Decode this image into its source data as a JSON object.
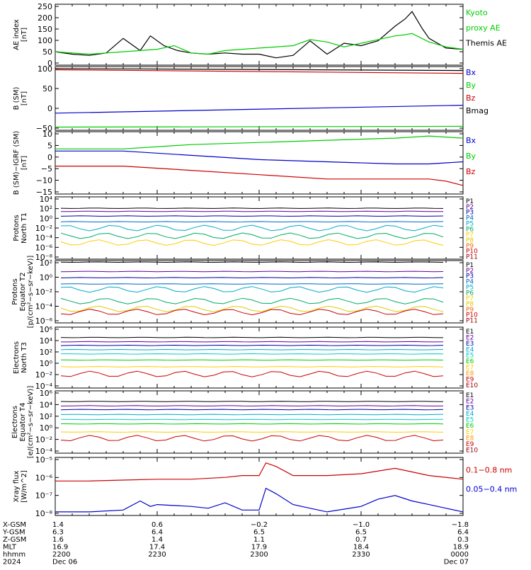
{
  "colors": {
    "black": "#000000",
    "green": "#00cc00",
    "blue": "#0000cc",
    "red": "#cc0000",
    "purple": "#660099",
    "darkblue": "#0000aa",
    "medblue": "#0066cc",
    "lightblue": "#00aacc",
    "cyan": "#00dddd",
    "lime": "#00cc00",
    "yellow": "#dddd00",
    "orange": "#ff9900",
    "darkred": "#990000"
  },
  "panels": [
    {
      "id": "ae",
      "ylabel": [
        "AE index",
        "[nT]"
      ],
      "ticks": [
        "250",
        "200",
        "150",
        "100",
        "50",
        "0"
      ],
      "legend": [
        {
          "text": "Kyoto",
          "color": "#00cc00"
        },
        {
          "text": "proxy AE",
          "color": "#00cc00"
        },
        {
          "text": "Themis AE",
          "color": "#000000"
        }
      ]
    },
    {
      "id": "bsm",
      "ylabel": [
        "B (SM)",
        "[nT]"
      ],
      "ticks": [
        "100",
        "50",
        "0",
        "−50"
      ],
      "legend": [
        {
          "text": "Bx",
          "color": "#0000cc"
        },
        {
          "text": "By",
          "color": "#00cc00"
        },
        {
          "text": "Bz",
          "color": "#cc0000"
        },
        {
          "text": "Bmag",
          "color": "#000000"
        }
      ]
    },
    {
      "id": "bigrf",
      "ylabel": [
        "B (SM)−IGRF (SM)",
        "[nT]"
      ],
      "ticks": [
        "10",
        "5",
        "0",
        "−5",
        "−10",
        "−15"
      ],
      "legend": [
        {
          "text": "Bx",
          "color": "#0000cc"
        },
        {
          "text": "By",
          "color": "#00cc00"
        },
        {
          "text": "Bz",
          "color": "#cc0000"
        }
      ]
    },
    {
      "id": "pn",
      "ylabel": [
        "Protons",
        "North T1"
      ],
      "ticks": [
        "10⁴",
        "10²",
        "10⁰",
        "10⁻²",
        "10⁻⁴",
        "10⁻⁶",
        "10⁻⁸"
      ],
      "legend": [
        {
          "text": "P1",
          "color": "#000000"
        },
        {
          "text": "P2",
          "color": "#660099"
        },
        {
          "text": "P3",
          "color": "#0000aa"
        },
        {
          "text": "P4",
          "color": "#0066cc"
        },
        {
          "text": "P5",
          "color": "#00aacc"
        },
        {
          "text": "P6",
          "color": "#00aa66"
        },
        {
          "text": "P7",
          "color": "#ffcc00"
        },
        {
          "text": "P8",
          "color": "#ddcc00"
        },
        {
          "text": "P9",
          "color": "#ff6600"
        },
        {
          "text": "P10",
          "color": "#cc0000"
        },
        {
          "text": "P11",
          "color": "#990000"
        }
      ]
    },
    {
      "id": "pe",
      "ylabel": [
        "Protons",
        "Equator T2",
        "[p/(cm²−s−sr−keV)]"
      ],
      "ticks": [
        "10²",
        "10⁰",
        "10⁻²",
        "10⁻⁴",
        "10⁻⁶"
      ],
      "legend": [
        {
          "text": "P1",
          "color": "#000000"
        },
        {
          "text": "P2",
          "color": "#660099"
        },
        {
          "text": "P3",
          "color": "#0000aa"
        },
        {
          "text": "P4",
          "color": "#0066cc"
        },
        {
          "text": "P5",
          "color": "#00aacc"
        },
        {
          "text": "P6",
          "color": "#00aa66"
        },
        {
          "text": "P7",
          "color": "#ffcc00"
        },
        {
          "text": "P8",
          "color": "#ddcc00"
        },
        {
          "text": "P9",
          "color": "#ff6600"
        },
        {
          "text": "P10",
          "color": "#cc0000"
        },
        {
          "text": "P11",
          "color": "#990000"
        }
      ]
    },
    {
      "id": "en",
      "ylabel": [
        "Electrons",
        "North T3"
      ],
      "ticks": [
        "10⁶",
        "10⁴",
        "10²",
        "10⁰",
        "10⁻²",
        "10⁻⁴"
      ],
      "legend": [
        {
          "text": "E1",
          "color": "#000000"
        },
        {
          "text": "E2",
          "color": "#660099"
        },
        {
          "text": "E3",
          "color": "#0000aa"
        },
        {
          "text": "E4",
          "color": "#00aacc"
        },
        {
          "text": "E5",
          "color": "#00cccc"
        },
        {
          "text": "E6",
          "color": "#00cc00"
        },
        {
          "text": "E7",
          "color": "#ffcc00"
        },
        {
          "text": "E8",
          "color": "#ff9900"
        },
        {
          "text": "E9",
          "color": "#cc0000"
        },
        {
          "text": "E10",
          "color": "#990000"
        }
      ]
    },
    {
      "id": "ee",
      "ylabel": [
        "Electrons",
        "Equator T4",
        "[e/(cm²−s−sr−keV)]"
      ],
      "ticks": [
        "10⁶",
        "10⁴",
        "10²",
        "10⁰",
        "10⁻²",
        "10⁻⁴"
      ],
      "legend": [
        {
          "text": "E1",
          "color": "#000000"
        },
        {
          "text": "E2",
          "color": "#660099"
        },
        {
          "text": "E3",
          "color": "#0000aa"
        },
        {
          "text": "E4",
          "color": "#00aacc"
        },
        {
          "text": "E5",
          "color": "#00cccc"
        },
        {
          "text": "E6",
          "color": "#00cc00"
        },
        {
          "text": "E7",
          "color": "#ffcc00"
        },
        {
          "text": "E8",
          "color": "#ff9900"
        },
        {
          "text": "E9",
          "color": "#cc0000"
        },
        {
          "text": "E10",
          "color": "#990000"
        }
      ]
    },
    {
      "id": "xray",
      "ylabel": [
        "Xray flux",
        "[W/m^2]"
      ],
      "ticks": [
        "10⁻⁵",
        "10⁻⁶",
        "10⁻⁷",
        "10⁻⁸"
      ],
      "legend": [
        {
          "text": "0.1−0.8 nm",
          "color": "#cc0000"
        },
        {
          "text": "0.05−0.4 nm",
          "color": "#0000cc"
        }
      ]
    }
  ],
  "footer": {
    "row_labels": [
      "X-GSM",
      "Y-GSM",
      "Z-GSM",
      "MLT",
      "hhmm",
      "2024"
    ],
    "columns": [
      [
        "1.4",
        "6.3",
        "1.6",
        "16.9",
        "2200",
        "Dec 06"
      ],
      [
        "0.6",
        "6.4",
        "1.4",
        "17.4",
        "2230",
        ""
      ],
      [
        "−0.2",
        "6.5",
        "1.1",
        "17.9",
        "2300",
        ""
      ],
      [
        "−1.0",
        "6.5",
        "0.7",
        "18.4",
        "2330",
        ""
      ],
      [
        "−1.8",
        "6.4",
        "0.3",
        "18.9",
        "0000",
        "Dec 07"
      ]
    ]
  },
  "chart_data": [
    {
      "type": "line",
      "title": "",
      "ylabel": "AE index [nT]",
      "ylim": [
        0,
        250
      ],
      "xlim": [
        0,
        120
      ],
      "series": [
        {
          "name": "Themis AE",
          "color": "#000000",
          "x": [
            0,
            5,
            10,
            15,
            20,
            25,
            28,
            32,
            36,
            40,
            45,
            50,
            55,
            60,
            65,
            70,
            75,
            80,
            85,
            90,
            95,
            100,
            103,
            105,
            108,
            110,
            115,
            120
          ],
          "y": [
            55,
            45,
            40,
            50,
            110,
            60,
            120,
            80,
            60,
            50,
            45,
            50,
            45,
            45,
            30,
            40,
            100,
            45,
            90,
            80,
            100,
            160,
            190,
            220,
            150,
            110,
            70,
            65
          ]
        },
        {
          "name": "Kyoto proxy AE",
          "color": "#00cc00",
          "x": [
            0,
            10,
            20,
            30,
            35,
            40,
            45,
            50,
            60,
            70,
            75,
            80,
            85,
            90,
            95,
            100,
            103,
            105,
            110,
            115,
            120
          ],
          "y": [
            55,
            45,
            55,
            65,
            80,
            50,
            45,
            60,
            70,
            80,
            105,
            95,
            75,
            90,
            105,
            120,
            125,
            130,
            95,
            75,
            65
          ]
        }
      ]
    },
    {
      "type": "line",
      "ylabel": "B (SM) [nT]",
      "ylim": [
        -55,
        105
      ],
      "xlim": [
        0,
        120
      ],
      "series": [
        {
          "name": "Bmag",
          "color": "#000000",
          "x": [
            0,
            120
          ],
          "y": [
            100,
            95
          ]
        },
        {
          "name": "Bz",
          "color": "#cc0000",
          "x": [
            0,
            120
          ],
          "y": [
            97,
            88
          ]
        },
        {
          "name": "Bx",
          "color": "#0000cc",
          "x": [
            0,
            120
          ],
          "y": [
            -12,
            8
          ]
        },
        {
          "name": "By",
          "color": "#00cc00",
          "x": [
            0,
            120
          ],
          "y": [
            -47,
            -45
          ]
        }
      ]
    },
    {
      "type": "line",
      "ylabel": "B (SM)−IGRF (SM) [nT]",
      "ylim": [
        -17,
        12
      ],
      "xlim": [
        0,
        120
      ],
      "series": [
        {
          "name": "By",
          "color": "#00cc00",
          "x": [
            0,
            20,
            40,
            60,
            80,
            100,
            110,
            120
          ],
          "y": [
            4,
            4,
            6,
            7,
            8,
            9,
            10,
            9
          ]
        },
        {
          "name": "Bx",
          "color": "#0000cc",
          "x": [
            0,
            20,
            40,
            60,
            80,
            100,
            110,
            120
          ],
          "y": [
            3,
            3,
            1,
            -1,
            -2,
            -3,
            -3,
            -2
          ]
        },
        {
          "name": "Bz",
          "color": "#cc0000",
          "x": [
            0,
            10,
            20,
            40,
            60,
            80,
            100,
            110,
            115,
            120
          ],
          "y": [
            -4,
            -4,
            -4,
            -6,
            -8,
            -10,
            -10,
            -10,
            -11,
            -13
          ]
        }
      ]
    },
    {
      "type": "line",
      "ylabel": "Protons North T1 (log10)",
      "ylim": [
        -8,
        4
      ],
      "series": [
        {
          "name": "P1",
          "y_log": 1.8
        },
        {
          "name": "P2",
          "y_log": 1.2
        },
        {
          "name": "P3",
          "y_log": 0.3
        },
        {
          "name": "P4",
          "y_log": -0.8
        },
        {
          "name": "P5",
          "y_log": -2.0
        },
        {
          "name": "P6",
          "y_log": -3.5
        },
        {
          "name": "P7",
          "y_log": -4.8
        }
      ]
    },
    {
      "type": "line",
      "ylabel": "Protons Equator T2 [p/(cm²−s−sr−keV)] (log10)",
      "ylim": [
        -6,
        2
      ],
      "series": [
        {
          "name": "P1",
          "y_log": 1.8
        },
        {
          "name": "P2",
          "y_log": 0.6
        },
        {
          "name": "P3",
          "y_log": -0.2
        },
        {
          "name": "P4",
          "y_log": -1.0
        },
        {
          "name": "P5",
          "y_log": -1.7
        },
        {
          "name": "P6",
          "y_log": -3.2
        },
        {
          "name": "P8",
          "y_log": -4.2
        },
        {
          "name": "P10",
          "y_log": -4.6
        }
      ]
    },
    {
      "type": "line",
      "ylabel": "Electrons North T3 (log10)",
      "ylim": [
        -4,
        6
      ],
      "series": [
        {
          "name": "E1",
          "y_log": 4.3
        },
        {
          "name": "E2",
          "y_log": 3.6
        },
        {
          "name": "E3",
          "y_log": 3.0
        },
        {
          "name": "E4",
          "y_log": 2.3
        },
        {
          "name": "E5",
          "y_log": 1.6
        },
        {
          "name": "E6",
          "y_log": 0.6
        },
        {
          "name": "E7",
          "y_log": -0.5
        },
        {
          "name": "E9",
          "y_log": -1.7
        }
      ]
    },
    {
      "type": "line",
      "ylabel": "Electrons Equator T4 [e/(cm²−s−sr−keV)] (log10)",
      "ylim": [
        -4,
        6
      ],
      "series": [
        {
          "name": "E1",
          "y_log": 4.3
        },
        {
          "name": "E2",
          "y_log": 3.6
        },
        {
          "name": "E3",
          "y_log": 3.0
        },
        {
          "name": "E4",
          "y_log": 2.2
        },
        {
          "name": "E5",
          "y_log": 1.4
        },
        {
          "name": "E6",
          "y_log": 0.7
        },
        {
          "name": "E7",
          "y_log": -0.6
        },
        {
          "name": "E9",
          "y_log": -1.6
        }
      ]
    },
    {
      "type": "line",
      "ylabel": "Xray flux [W/m^2] (log10)",
      "ylim": [
        -8.2,
        -5
      ],
      "xlim": [
        0,
        120
      ],
      "series": [
        {
          "name": "0.1−0.8 nm",
          "color": "#cc0000",
          "x": [
            0,
            10,
            20,
            30,
            40,
            50,
            55,
            60,
            62,
            65,
            70,
            80,
            90,
            100,
            105,
            110,
            120
          ],
          "y": [
            -6.3,
            -6.3,
            -6.25,
            -6.2,
            -6.2,
            -6.1,
            -6.0,
            -6.0,
            -5.3,
            -5.5,
            -6.0,
            -6.0,
            -5.9,
            -5.6,
            -5.8,
            -6.0,
            -6.2
          ]
        },
        {
          "name": "0.05−0.4 nm",
          "color": "#0000cc",
          "x": [
            0,
            10,
            20,
            25,
            28,
            30,
            40,
            45,
            50,
            55,
            60,
            62,
            65,
            70,
            75,
            80,
            90,
            95,
            100,
            105,
            110,
            115,
            120
          ],
          "y": [
            -8.0,
            -8.0,
            -7.9,
            -7.4,
            -7.7,
            -7.6,
            -7.7,
            -7.8,
            -7.5,
            -7.9,
            -7.9,
            -6.7,
            -7.0,
            -7.6,
            -7.8,
            -8.0,
            -7.7,
            -7.3,
            -7.1,
            -7.4,
            -7.6,
            -7.8,
            -8.0
          ]
        }
      ]
    }
  ]
}
